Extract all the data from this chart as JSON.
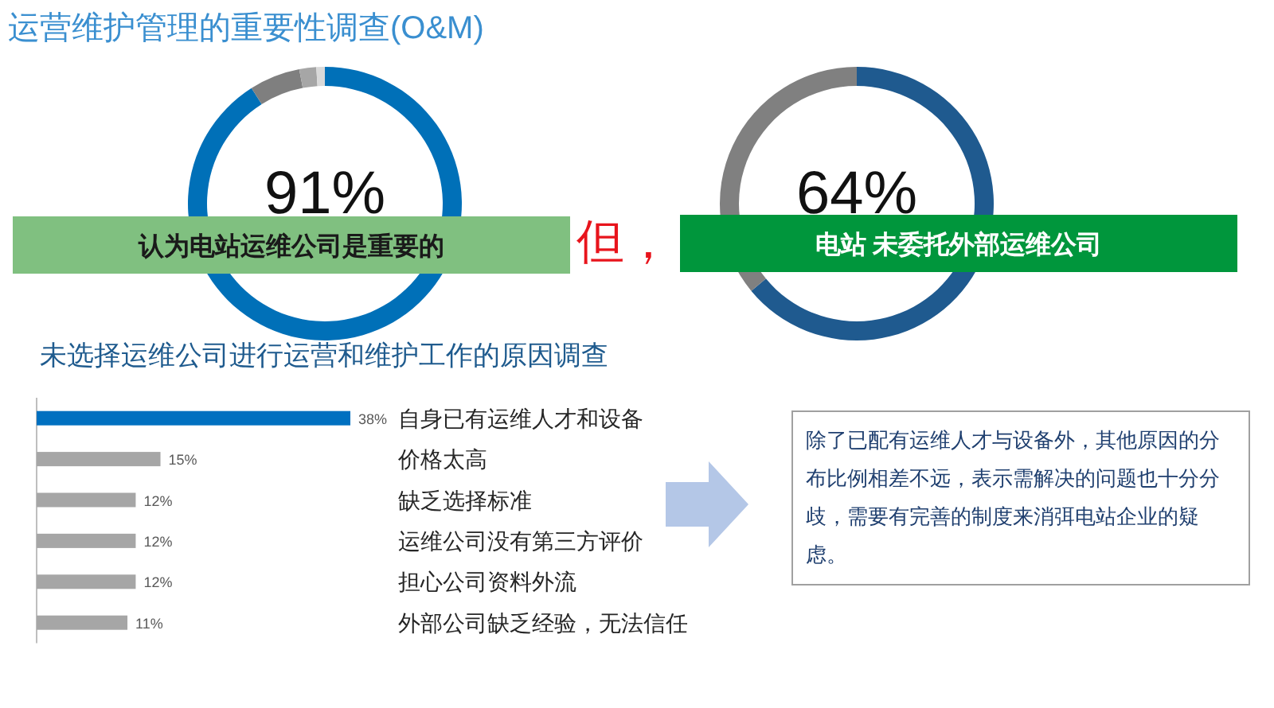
{
  "chart_data": [
    {
      "type": "donut",
      "title": "运营维护管理的重要性调查(O&M)",
      "categories": [
        null,
        null,
        null,
        null
      ],
      "values": [
        91,
        6,
        2,
        1
      ],
      "colors": [
        "#0070b8",
        "#7f7f7f",
        "#a6a6a6",
        "#d9d9d9"
      ],
      "value_labels": [
        "91%",
        null,
        null,
        null
      ],
      "annotations": [
        "认为电站运维公司是重要的",
        "但，"
      ]
    },
    {
      "type": "donut",
      "categories": [
        null,
        null
      ],
      "values": [
        64,
        36
      ],
      "colors": [
        "#1f5a8f",
        "#808080"
      ],
      "value_labels": [
        "64%",
        null
      ],
      "annotations": [
        "电站 未委托外部运维公司"
      ]
    },
    {
      "type": "bar",
      "orientation": "horizontal",
      "title": "未选择运维公司进行运营和维护工作的原因调查",
      "categories": [
        "自身已有运维人才和设备",
        "价格太高",
        "缺乏选择标准",
        "运维公司没有第三方评价",
        "担心公司资料外流",
        "外部公司缺乏经验，无法信任"
      ],
      "values": [
        38,
        15,
        12,
        12,
        12,
        11
      ],
      "colors": [
        "#0070c0",
        "#a6a6a6",
        "#a6a6a6",
        "#a6a6a6",
        "#a6a6a6",
        "#a6a6a6"
      ],
      "value_labels": [
        "38%",
        "15%",
        "12%",
        "12%",
        "12%",
        "11%"
      ]
    },
    {
      "type": "other",
      "annotations": [
        "除了已配有运维人才与设备外，其他原因的分布比例相差不远，表示需解决的问题也十分分歧，需要有完善的制度来消弭电站企业的疑虑。"
      ]
    }
  ]
}
